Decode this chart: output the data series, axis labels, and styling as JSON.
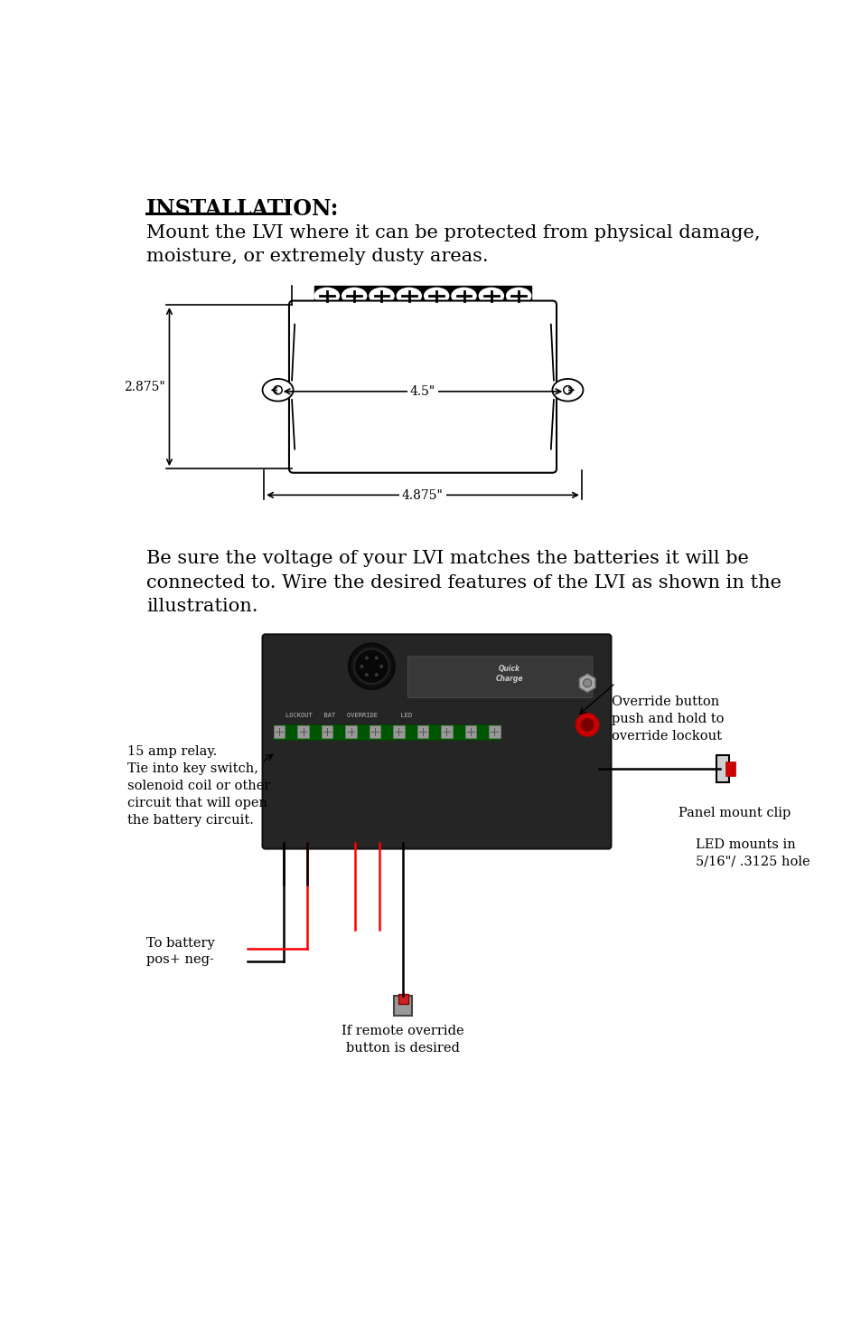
{
  "bg_color": "#ffffff",
  "title_text": "INSTALLATION:",
  "para1": "Mount the LVI where it can be protected from physical damage,\nmoisture, or extremely dusty areas.",
  "para2": "Be sure the voltage of your LVI matches the batteries it will be\nconnected to. Wire the desired features of the LVI as shown in the\nillustration.",
  "dim_label_height": "2.875\"",
  "dim_label_width_inner": "4.5\"",
  "dim_label_width_outer": "4.875\"",
  "annotation_relay": "15 amp relay.\nTie into key switch,\nsolenoid coil or other\ncircuit that will open\nthe battery circuit.",
  "annotation_battery": "To battery\npos+ neg-",
  "annotation_override": "If remote override\nbutton is desired",
  "annotation_override_btn": "Override button\npush and hold to\noverride lockout",
  "annotation_panel": "Panel mount clip",
  "annotation_led": "LED mounts in\n5/16\"/ .3125 hole"
}
